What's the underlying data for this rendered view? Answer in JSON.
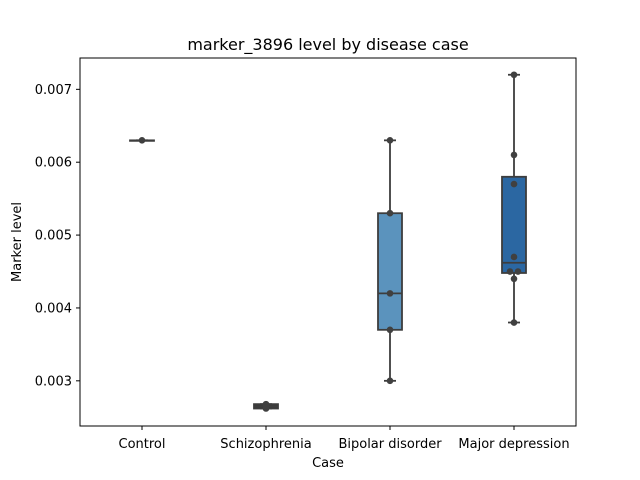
{
  "chart_data": {
    "type": "box",
    "title": "marker_3896 level by disease case",
    "xlabel": "Case",
    "ylabel": "Marker level",
    "ylim": [
      0.00238,
      0.00743
    ],
    "yticks": [
      "0.003",
      "0.004",
      "0.005",
      "0.006",
      "0.007"
    ],
    "ytick_values": [
      0.003,
      0.004,
      0.005,
      0.006,
      0.007
    ],
    "categories": [
      "Control",
      "Schizophrenia",
      "Bipolar disorder",
      "Major depression"
    ],
    "colors": [
      "#3a3a3a",
      "#3a3a3a",
      "#5b93bd",
      "#2b67a2"
    ],
    "grid": false,
    "boxes": [
      {
        "category": "Control",
        "whisker_low": 0.0063,
        "q1": 0.0063,
        "median": 0.0063,
        "q3": 0.0063,
        "whisker_high": 0.0063,
        "points": [
          0.0063
        ]
      },
      {
        "category": "Schizophrenia",
        "whisker_low": 0.00262,
        "q1": 0.00262,
        "median": 0.00265,
        "q3": 0.00268,
        "whisker_high": 0.00268,
        "points": [
          0.00262,
          0.00265,
          0.00268
        ]
      },
      {
        "category": "Bipolar disorder",
        "whisker_low": 0.003,
        "q1": 0.0037,
        "median": 0.0042,
        "q3": 0.0053,
        "whisker_high": 0.0063,
        "points": [
          0.003,
          0.0037,
          0.0042,
          0.0053,
          0.0063
        ]
      },
      {
        "category": "Major depression",
        "whisker_low": 0.0038,
        "q1": 0.00448,
        "median": 0.00462,
        "q3": 0.0058,
        "whisker_high": 0.0072,
        "points": [
          0.0038,
          0.0044,
          0.0045,
          0.0045,
          0.0047,
          0.0057,
          0.0061,
          0.0072
        ]
      }
    ]
  }
}
